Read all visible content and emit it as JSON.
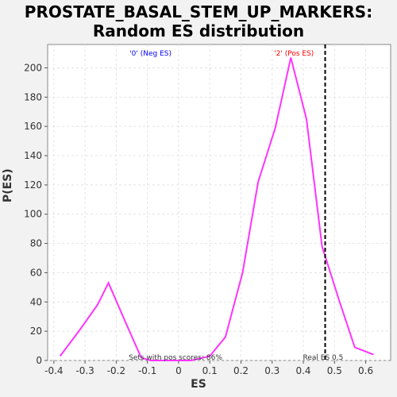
{
  "chart_data": {
    "type": "line",
    "title": "PROSTATE_BASAL_STEM_UP_MARKERS:",
    "subtitle": "Random ES distribution",
    "xlabel": "ES",
    "ylabel": "P(ES)",
    "xlim": [
      -0.42,
      0.68
    ],
    "ylim": [
      0,
      216
    ],
    "xticks": [
      -0.4,
      -0.3,
      -0.2,
      -0.1,
      0,
      0.1,
      0.2,
      0.3,
      0.4,
      0.5,
      0.6
    ],
    "yticks": [
      0,
      20,
      40,
      60,
      80,
      100,
      120,
      140,
      160,
      180,
      200
    ],
    "grid": true,
    "series": [
      {
        "color": "#ff33ff",
        "x": [
          -0.38,
          -0.32,
          -0.26,
          -0.225,
          -0.17,
          -0.12,
          -0.09,
          0.0,
          0.04,
          0.1,
          0.15,
          0.205,
          0.255,
          0.31,
          0.36,
          0.41,
          0.46,
          0.515,
          0.565,
          0.625
        ],
        "y": [
          3,
          20,
          38,
          53,
          26,
          2,
          0,
          0,
          0,
          3,
          16,
          60,
          122,
          159,
          207,
          165,
          78,
          41,
          9,
          4
        ]
      }
    ],
    "annotations": {
      "neg_label": "'0' (Neg ES)",
      "pos_label": "'2' (Pos ES)",
      "neg_color": "#0000ff",
      "pos_color": "#ff0000",
      "real_es_label": "Real ES 0.5",
      "real_es_value": 0.47,
      "pos_scores_label": "Sets with pos scores: 86%"
    }
  }
}
